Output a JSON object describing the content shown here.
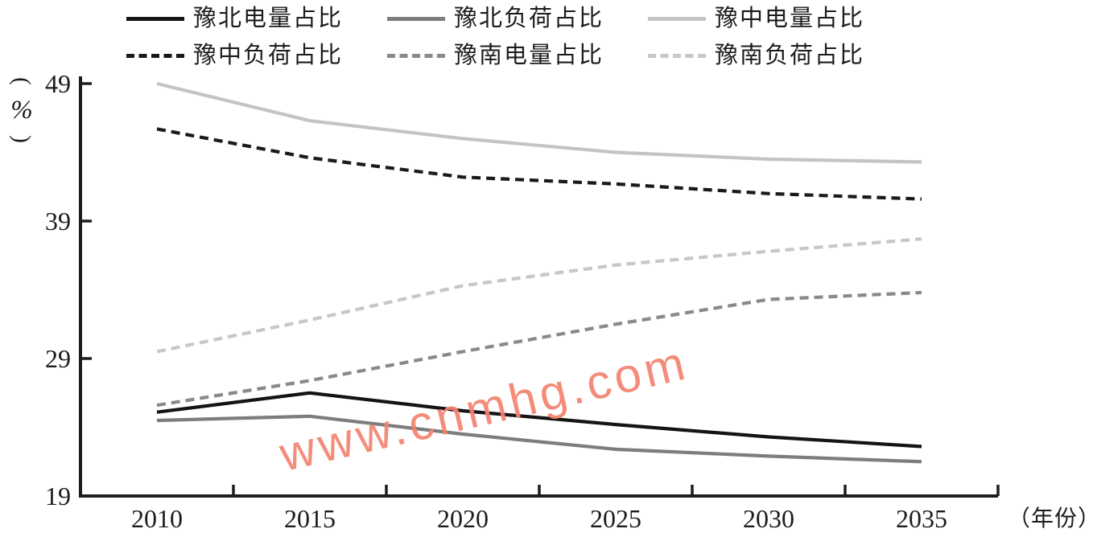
{
  "watermark": {
    "text": "www.cnmhg.com",
    "color": "#f4836f"
  },
  "axes": {
    "y_unit": "(%)",
    "x_unit": "（年份）",
    "axis_color": "#1c1c1c"
  },
  "chart_data": {
    "type": "line",
    "x": [
      2010,
      2015,
      2020,
      2025,
      2030,
      2035
    ],
    "xlabel": "（年份）",
    "ylabel": "(%)",
    "ylim": [
      19,
      49
    ],
    "yticks": [
      49,
      39,
      29,
      19
    ],
    "grid": false,
    "legend_position": "top",
    "series": [
      {
        "name": "豫北电量占比",
        "color": "#141414",
        "line_style": "solid",
        "values": [
          25.1,
          26.5,
          25.2,
          24.2,
          23.3,
          22.6
        ]
      },
      {
        "name": "豫北负荷占比",
        "color": "#7d7d7d",
        "line_style": "solid",
        "values": [
          24.5,
          24.8,
          23.5,
          22.4,
          21.9,
          21.5
        ]
      },
      {
        "name": "豫中电量占比",
        "color": "#c4c4c4",
        "line_style": "solid",
        "values": [
          49.0,
          46.3,
          45.0,
          44.0,
          43.5,
          43.3
        ]
      },
      {
        "name": "豫中负荷占比",
        "color": "#1a1a1a",
        "line_style": "dashed",
        "values": [
          45.7,
          43.6,
          42.2,
          41.7,
          41.0,
          40.6
        ]
      },
      {
        "name": "豫南电量占比",
        "color": "#8a8a8a",
        "line_style": "dashed",
        "values": [
          25.6,
          27.4,
          29.5,
          31.5,
          33.3,
          33.8
        ]
      },
      {
        "name": "豫南负荷占比",
        "color": "#c7c7c7",
        "line_style": "dashed",
        "values": [
          29.5,
          31.8,
          34.3,
          35.8,
          36.8,
          37.7
        ]
      }
    ]
  }
}
